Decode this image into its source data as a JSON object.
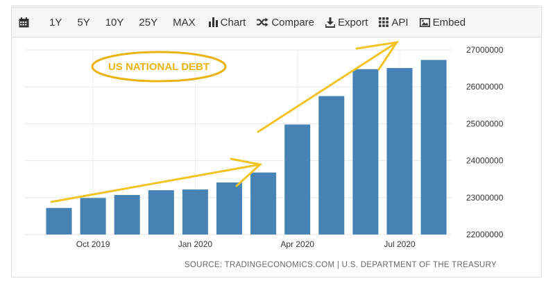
{
  "toolbar": {
    "ranges": [
      "1Y",
      "5Y",
      "10Y",
      "25Y",
      "MAX"
    ],
    "chart_label": "Chart",
    "compare_label": "Compare",
    "export_label": "Export",
    "api_label": "API",
    "embed_label": "Embed",
    "icons": {
      "calendar": "calendar-icon",
      "chart": "bar-chart-icon",
      "compare": "shuffle-icon",
      "export": "download-icon",
      "api": "grid-icon",
      "embed": "image-icon"
    }
  },
  "annotation": {
    "label": "US NATIONAL DEBT",
    "color": "#ebb312"
  },
  "source": "SOURCE: TRADINGECONOMICS.COM | U.S. DEPARTMENT OF THE TREASURY",
  "chart_data": {
    "type": "bar",
    "bar_color": "#4682b4",
    "grid": true,
    "y_axis_side": "right",
    "ylim": [
      22000000,
      27000000
    ],
    "yticks": [
      22000000,
      23000000,
      24000000,
      25000000,
      26000000,
      27000000
    ],
    "ytick_labels": [
      "22000000",
      "23000000",
      "24000000",
      "25000000",
      "26000000",
      "27000000"
    ],
    "x_ticks": [
      {
        "label": "Oct 2019",
        "index": 1
      },
      {
        "label": "Jan 2020",
        "index": 4
      },
      {
        "label": "Apr 2020",
        "index": 7
      },
      {
        "label": "Jul 2020",
        "index": 10
      }
    ],
    "values": [
      22720000,
      22990000,
      23070000,
      23200000,
      23220000,
      23410000,
      23680000,
      24980000,
      25750000,
      26480000,
      26510000,
      26730000
    ]
  }
}
